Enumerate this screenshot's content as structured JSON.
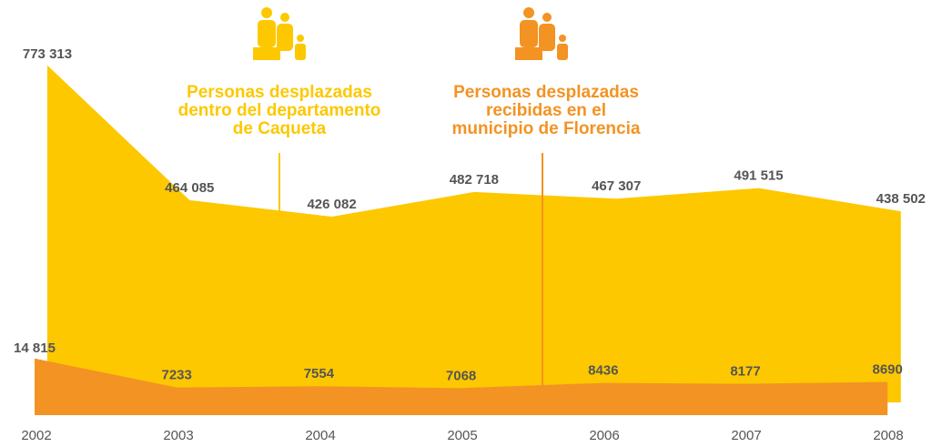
{
  "chart_data": {
    "type": "area",
    "categories": [
      "2002",
      "2003",
      "2004",
      "2005",
      "2006",
      "2007",
      "2008"
    ],
    "series": [
      {
        "name": "Personas desplazadas\ndentro del departamento\nde Caqueta",
        "color": "#fdc800",
        "values": [
          773313,
          464085,
          426082,
          482718,
          467307,
          491515,
          438502
        ],
        "value_labels": [
          "773 313",
          "464 085",
          "426 082",
          "482 718",
          "467 307",
          "491 515",
          "438 502"
        ]
      },
      {
        "name": "Personas desplazadas\nrecibidas en el\nmunicipio de Florencia",
        "color": "#f39323",
        "axis": "y2",
        "values": [
          14815,
          7233,
          7554,
          7068,
          8436,
          8177,
          8690
        ],
        "value_labels": [
          "14 815",
          "7233",
          "7554",
          "7068",
          "8436",
          "8177",
          "8690"
        ]
      }
    ],
    "ylim": [
      0,
      800000
    ],
    "y2lim": [
      0,
      15000
    ]
  }
}
